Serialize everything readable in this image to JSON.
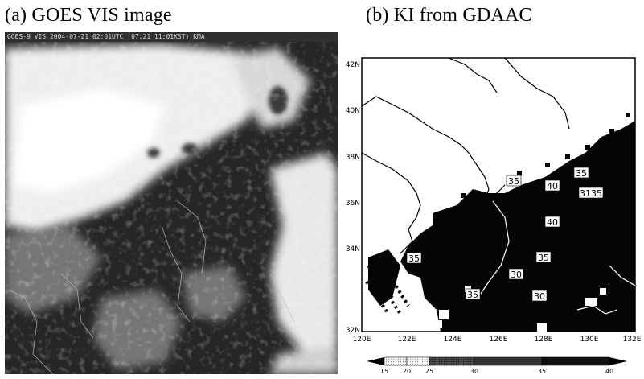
{
  "panel_a": {
    "title": "(a) GOES VIS image",
    "header": "GOES-9 VIS 2004-07-21 02:01UTC (07.21 11:01KST) KMA"
  },
  "panel_b": {
    "title": "(b) KI from GDAAC",
    "lat_labels": [
      "42N",
      "40N",
      "38N",
      "36N",
      "34N",
      "32N"
    ],
    "lon_labels": [
      "120E",
      "122E",
      "124E",
      "126E",
      "128E",
      "130E",
      "132E"
    ],
    "ki_labels": [
      "35",
      "40",
      "35",
      "3135",
      "40",
      "35",
      "35",
      "30",
      "35",
      "30"
    ],
    "colorbar_ticks": [
      "15",
      "20",
      "25",
      "30",
      "35",
      "40"
    ]
  }
}
